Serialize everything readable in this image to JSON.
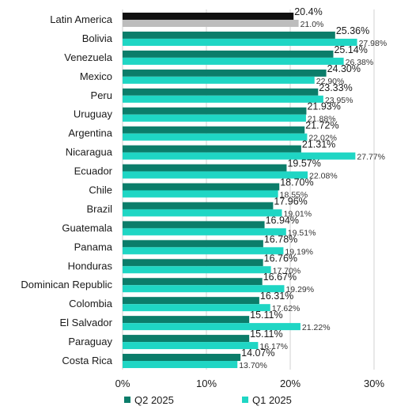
{
  "chart_data": {
    "type": "bar",
    "orientation": "horizontal",
    "title": "",
    "xlabel": "",
    "ylabel": "",
    "xlim": [
      0,
      30
    ],
    "x_ticks": [
      0,
      10,
      20,
      30
    ],
    "x_tick_labels": [
      "0%",
      "10%",
      "20%",
      "30%"
    ],
    "grid": true,
    "legend_position": "bottom",
    "categories": [
      "Latin America",
      "Bolivia",
      "Venezuela",
      "Mexico",
      "Peru",
      "Uruguay",
      "Argentina",
      "Nicaragua",
      "Ecuador",
      "Chile",
      "Brazil",
      "Guatemala",
      "Panama",
      "Honduras",
      "Dominican Republic",
      "Colombia",
      "El Salvador",
      "Paraguay",
      "Costa Rica"
    ],
    "series": [
      {
        "name": "Q2 2025",
        "color": "#0b7d6a",
        "values": [
          20.4,
          25.36,
          25.14,
          24.3,
          23.33,
          21.93,
          21.72,
          21.31,
          19.57,
          18.7,
          17.96,
          16.94,
          16.78,
          16.76,
          16.67,
          16.31,
          15.11,
          15.11,
          14.07
        ],
        "labels": [
          "20.4%",
          "25.36%",
          "25.14%",
          "24.30%",
          "23.33%",
          "21.93%",
          "21.72%",
          "21.31%",
          "19.57%",
          "18.70%",
          "17.96%",
          "16.94%",
          "16.78%",
          "16.76%",
          "16.67%",
          "16.31%",
          "15.11%",
          "15.11%",
          "14.07%"
        ]
      },
      {
        "name": "Q1 2025",
        "color": "#1fd6c4",
        "values": [
          21.0,
          27.98,
          26.38,
          22.9,
          23.95,
          21.88,
          22.02,
          27.77,
          22.08,
          18.55,
          19.01,
          19.51,
          19.19,
          17.7,
          19.29,
          17.62,
          21.22,
          16.17,
          13.7
        ],
        "labels": [
          "21.0%",
          "27.98%",
          "26.38%",
          "22.90%",
          "23.95%",
          "21.88%",
          "22.02%",
          "27.77%",
          "22.08%",
          "18.55%",
          "19.01%",
          "19.51%",
          "19.19%",
          "17.70%",
          "19.29%",
          "17.62%",
          "21.22%",
          "16.17%",
          "13.70%"
        ]
      }
    ],
    "highlight": {
      "index": 0,
      "q2_color": "#111111",
      "q1_color": "#bdbdbd"
    },
    "grid_color": "#d0d0d0"
  }
}
